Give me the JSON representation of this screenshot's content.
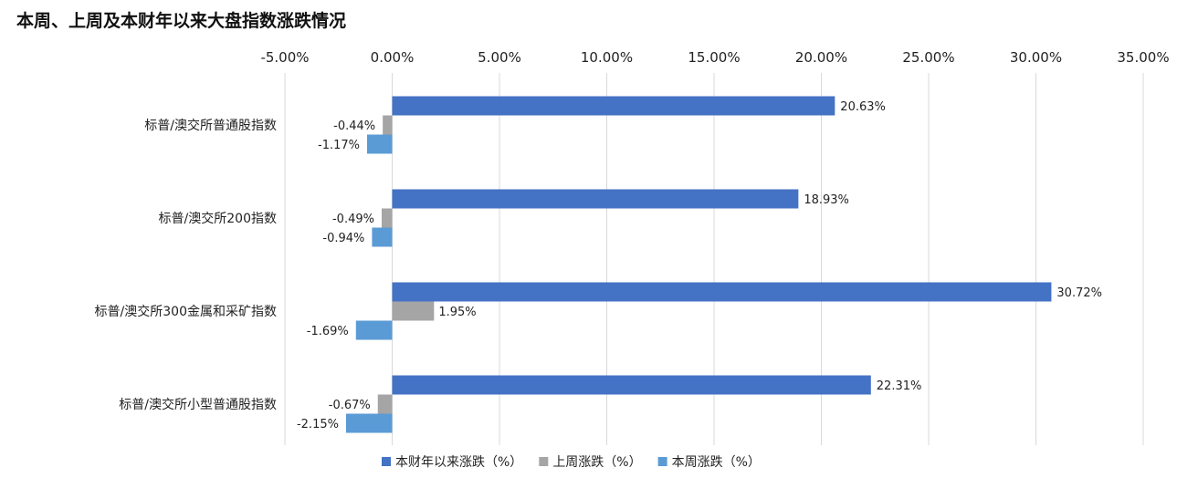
{
  "chart_data": {
    "type": "bar",
    "orientation": "horizontal",
    "title": "本周、上周及本财年以来大盘指数涨跌情况",
    "categories": [
      "标普/澳交所普通股指数",
      "标普/澳交所200指数",
      "标普/澳交所300金属和采矿指数",
      "标普/澳交所小型普通股指数"
    ],
    "series": [
      {
        "name": "本财年以来涨跌（%）",
        "color": "#4472C4",
        "values": [
          20.63,
          18.93,
          30.72,
          22.31
        ],
        "labels": [
          "20.63%",
          "18.93%",
          "30.72%",
          "22.31%"
        ]
      },
      {
        "name": "上周涨跌（%）",
        "color": "#A5A5A5",
        "values": [
          -0.44,
          -0.49,
          1.95,
          -0.67
        ],
        "labels": [
          "-0.44%",
          "-0.49%",
          "1.95%",
          "-0.67%"
        ]
      },
      {
        "name": "本周涨跌（%）",
        "color": "#5B9BD5",
        "values": [
          -1.17,
          -0.94,
          -1.69,
          -2.15
        ],
        "labels": [
          "-1.17%",
          "-0.94%",
          "-1.69%",
          "-2.15%"
        ]
      }
    ],
    "xlim": [
      -5,
      35
    ],
    "xticks": [
      -5,
      0,
      5,
      10,
      15,
      20,
      25,
      30,
      35
    ],
    "xtick_labels": [
      "-5.00%",
      "0.00%",
      "5.00%",
      "10.00%",
      "15.00%",
      "20.00%",
      "25.00%",
      "30.00%",
      "35.00%"
    ],
    "x_axis_position": "top",
    "grid": true,
    "legend_position": "bottom"
  }
}
